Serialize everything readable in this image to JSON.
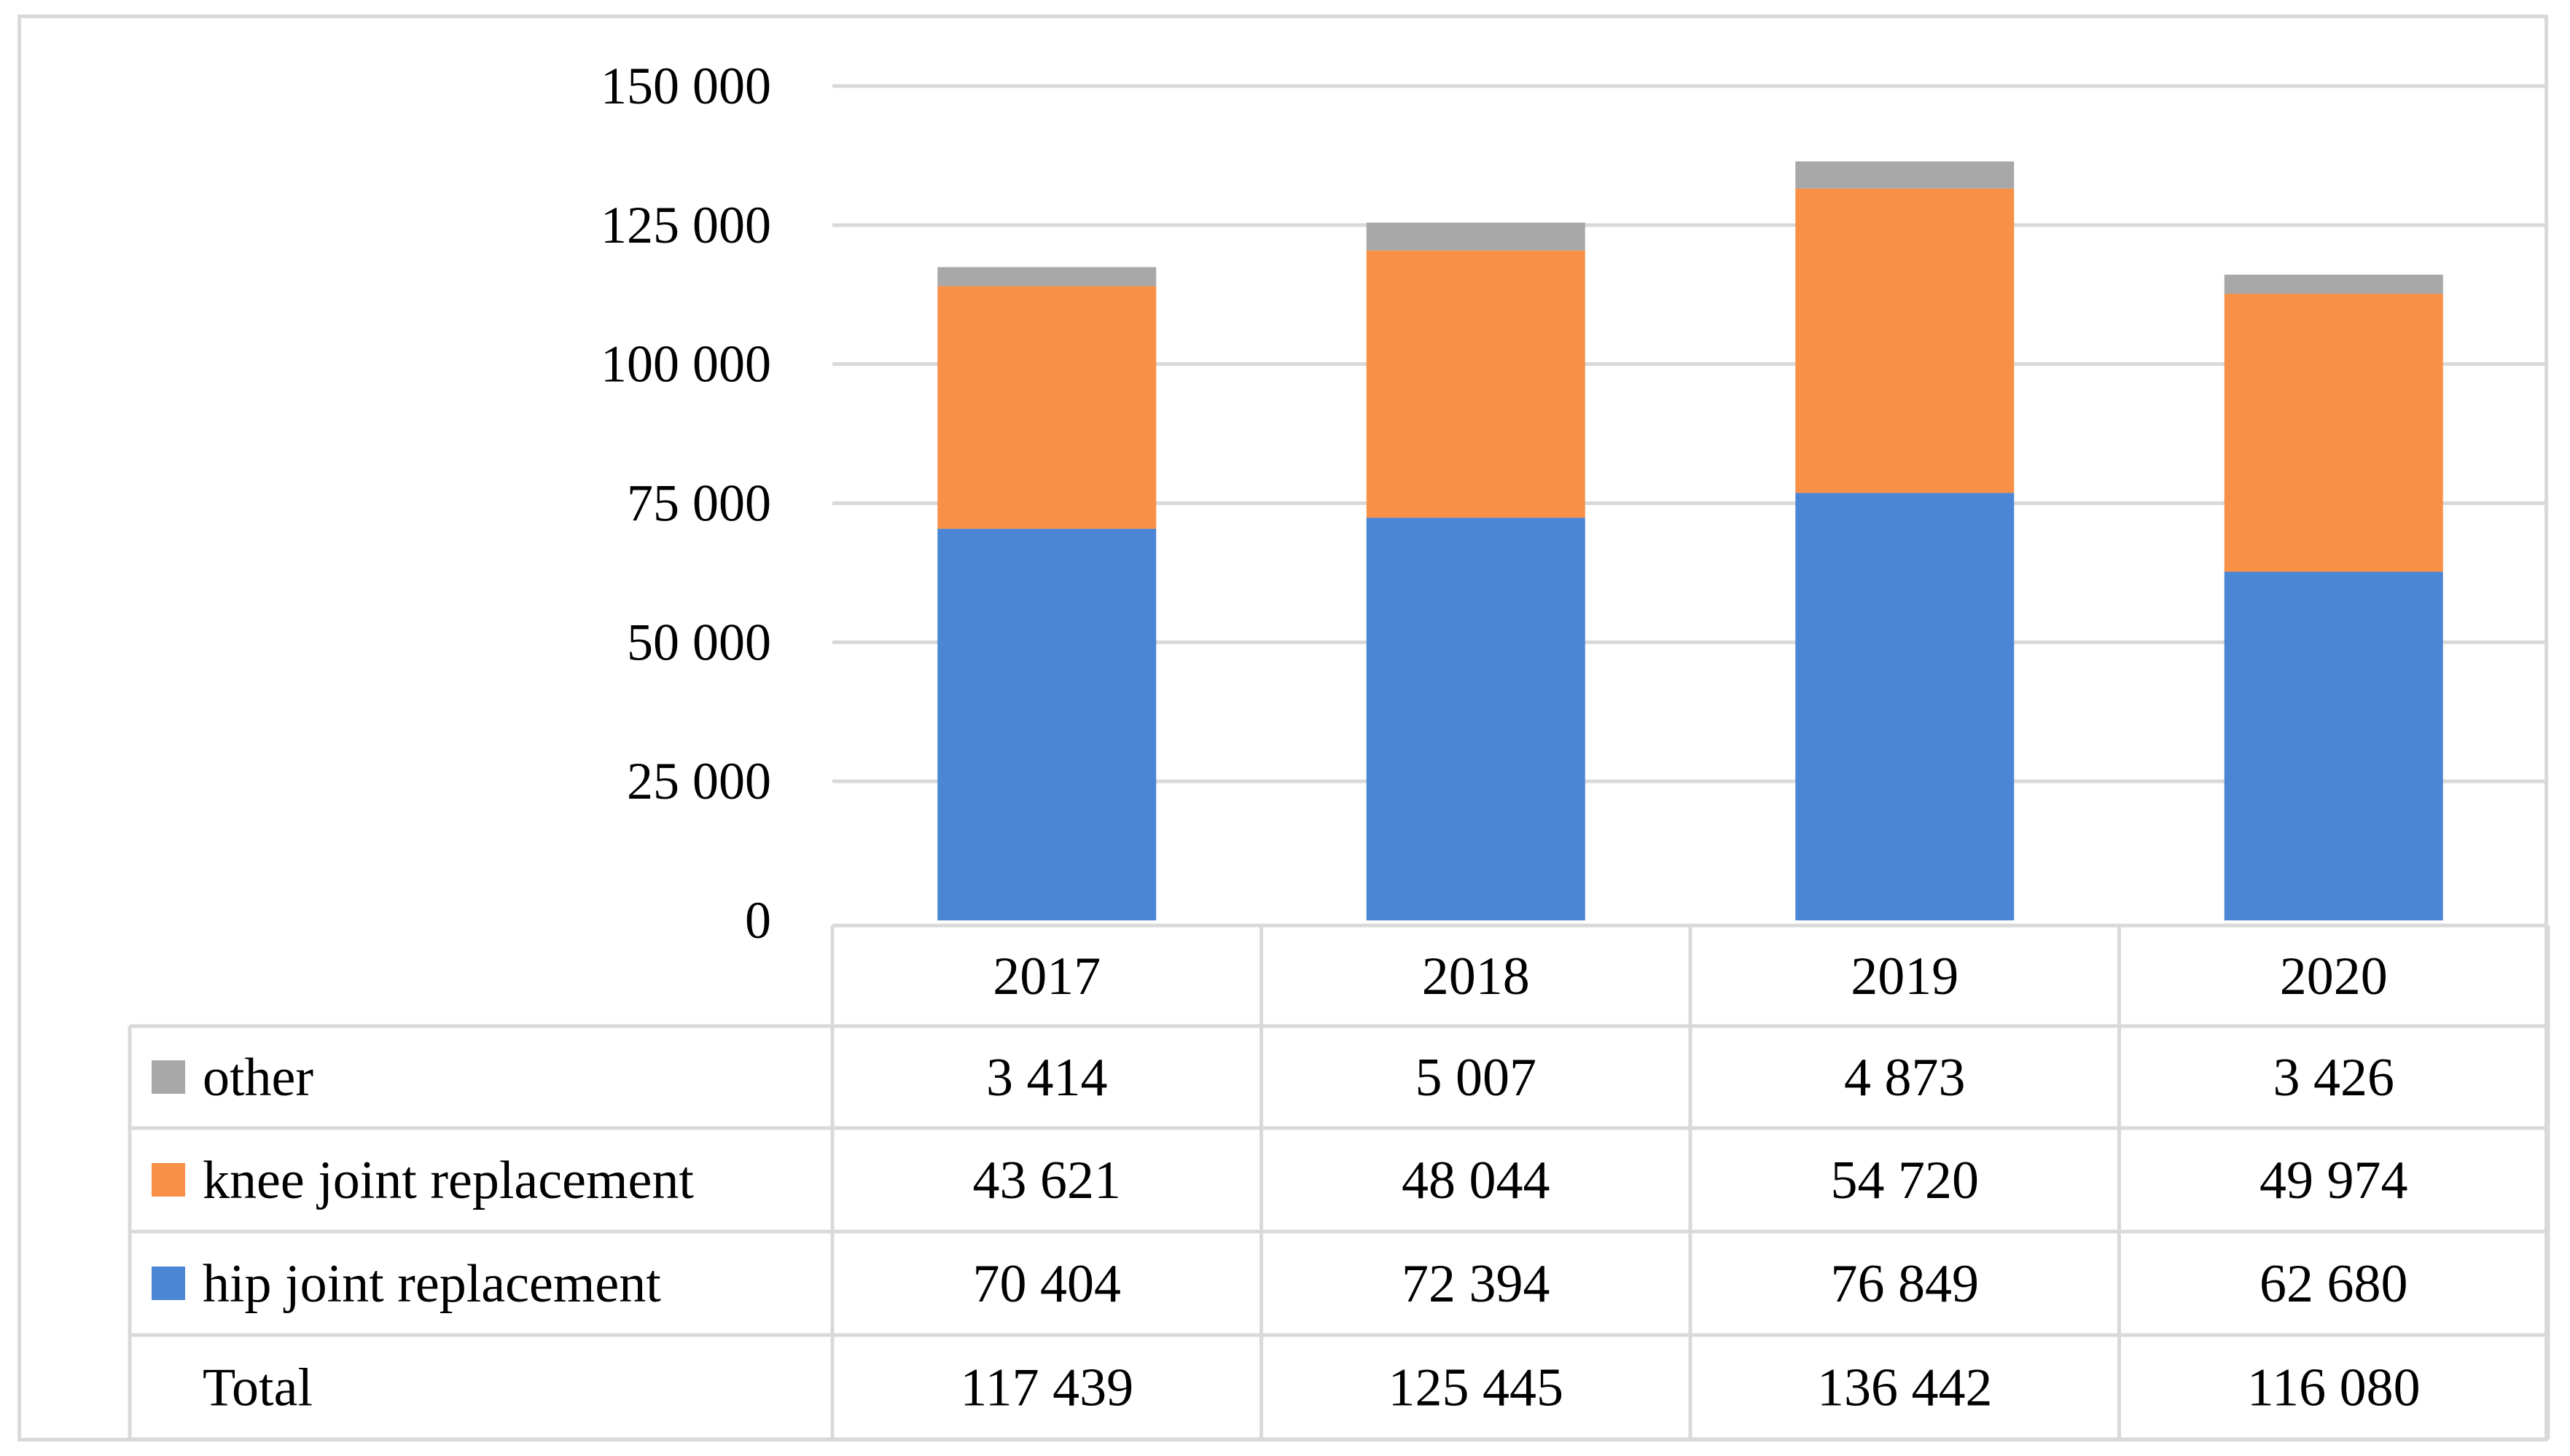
{
  "chart_data": {
    "type": "bar",
    "stacked": true,
    "categories": [
      "2017",
      "2018",
      "2019",
      "2020"
    ],
    "series": [
      {
        "name": "hip joint replacement",
        "values": [
          70404,
          72394,
          76849,
          62680
        ],
        "color": "#4a86d4",
        "display": [
          "70 404",
          "72 394",
          "76 849",
          "62 680"
        ]
      },
      {
        "name": "knee joint replacement",
        "values": [
          43621,
          48044,
          54720,
          49974
        ],
        "color": "#f89048",
        "display": [
          "43 621",
          "48 044",
          "54 720",
          "49 974"
        ]
      },
      {
        "name": "other",
        "values": [
          3414,
          5007,
          4873,
          3426
        ],
        "color": "#a8a8a8",
        "display": [
          "3 414",
          "5 007",
          "4 873",
          "3 426"
        ]
      }
    ],
    "total": {
      "label": "Total",
      "values": [
        117439,
        125445,
        136442,
        116080
      ],
      "display": [
        "117 439",
        "125 445",
        "136 442",
        "116 080"
      ]
    },
    "ylim": [
      0,
      150000
    ],
    "yticks": [
      0,
      25000,
      50000,
      75000,
      100000,
      125000,
      150000
    ],
    "ytick_labels": [
      "0",
      "25 000",
      "50 000",
      "75 000",
      "100 000",
      "125 000",
      "150 000"
    ],
    "grid": true,
    "legend": "data-table",
    "title": "",
    "xlabel": "",
    "ylabel": ""
  }
}
